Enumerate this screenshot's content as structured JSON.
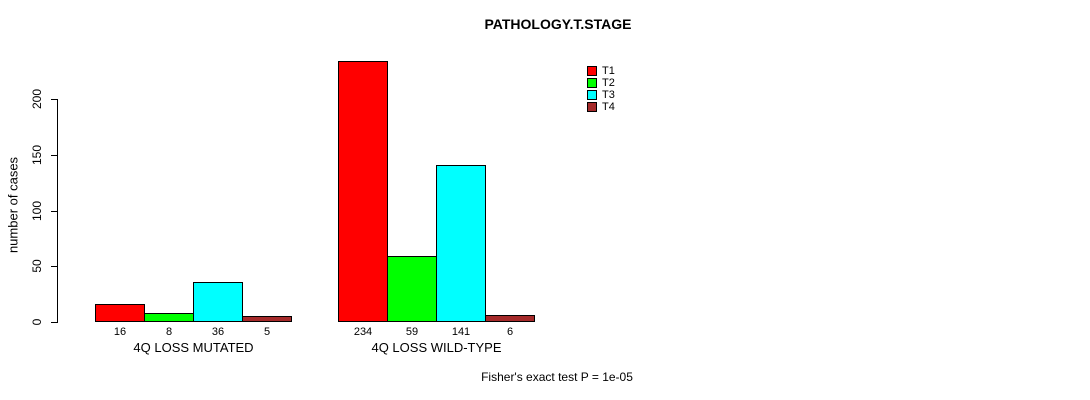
{
  "title": "PATHOLOGY.T.STAGE",
  "footer": "Fisher's exact test P = 1e-05",
  "colors": {
    "t1": "#FF0000",
    "t2": "#00FF00",
    "t3": "#00FFFF",
    "t4": "#A52A2A",
    "axis": "#000000",
    "background": "#FFFFFF"
  },
  "chart_data": {
    "type": "bar",
    "title": "PATHOLOGY.T.STAGE",
    "xlabel": "",
    "ylabel": "number of cases",
    "ylim": [
      0,
      234
    ],
    "yticks": [
      0,
      50,
      100,
      150,
      200
    ],
    "grid": false,
    "legend_position": "top-right",
    "categories": [
      "4Q LOSS MUTATED",
      "4Q LOSS WILD-TYPE"
    ],
    "series": [
      {
        "name": "T1",
        "color": "#FF0000",
        "values": [
          16,
          234
        ]
      },
      {
        "name": "T2",
        "color": "#00FF00",
        "values": [
          8,
          59
        ]
      },
      {
        "name": "T3",
        "color": "#00FFFF",
        "values": [
          36,
          141
        ]
      },
      {
        "name": "T4",
        "color": "#A52A2A",
        "values": [
          5,
          6
        ]
      }
    ],
    "bar_value_labels": [
      [
        "16",
        "8",
        "36",
        "5"
      ],
      [
        "234",
        "59",
        "141",
        "6"
      ]
    ],
    "annotation": "Fisher's exact test P = 1e-05"
  }
}
